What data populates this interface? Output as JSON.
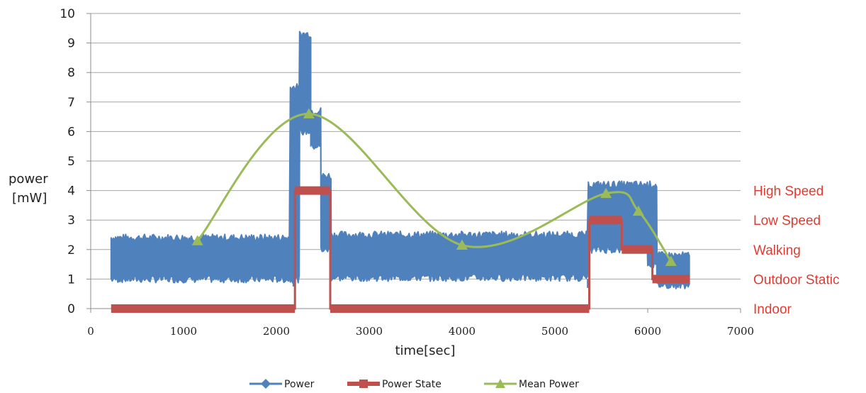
{
  "chart_data": {
    "type": "line",
    "title": "",
    "xlabel": "time[sec]",
    "ylabel": [
      "power",
      "[mW]"
    ],
    "xlim": [
      0,
      7000
    ],
    "ylim": [
      0,
      10
    ],
    "x_ticks": [
      "0",
      "1000",
      "2000",
      "3000",
      "4000",
      "5000",
      "6000",
      "7000"
    ],
    "y_ticks": [
      "0",
      "1",
      "2",
      "3",
      "4",
      "5",
      "6",
      "7",
      "8",
      "9",
      "10"
    ],
    "grid": "horizontal",
    "legend_position": "bottom",
    "state_labels": [
      {
        "text": "High Speed",
        "value": 4
      },
      {
        "text": "Low Speed",
        "value": 3
      },
      {
        "text": "Walking",
        "value": 2
      },
      {
        "text": "Outdoor Static",
        "value": 1
      },
      {
        "text": "Indoor",
        "value": 0
      }
    ],
    "series": [
      {
        "name": "Power",
        "color": "#4f81bd",
        "style": "band",
        "segments": [
          {
            "x": [
              220,
              2150
            ],
            "low": 1.0,
            "high": 2.4
          },
          {
            "x": [
              2150,
              2250
            ],
            "low": 1.0,
            "high": 7.5
          },
          {
            "x": [
              2250,
              2370
            ],
            "low": 6.0,
            "high": 9.3
          },
          {
            "x": [
              2370,
              2480
            ],
            "low": 5.5,
            "high": 6.7
          },
          {
            "x": [
              2480,
              2590
            ],
            "low": 2.0,
            "high": 4.5
          },
          {
            "x": [
              2590,
              5360
            ],
            "low": 1.05,
            "high": 2.5
          },
          {
            "x": [
              5360,
              6000
            ],
            "low": 2.0,
            "high": 4.2
          },
          {
            "x": [
              6000,
              6100
            ],
            "low": 1.5,
            "high": 4.2
          },
          {
            "x": [
              6100,
              6450
            ],
            "low": 0.8,
            "high": 1.8
          }
        ]
      },
      {
        "name": "Power State",
        "color": "#c0504d",
        "style": "step",
        "x": [
          220,
          2200,
          2200,
          2580,
          2580,
          5370,
          5370,
          5720,
          5720,
          6050,
          6050,
          6450
        ],
        "y": [
          0,
          0,
          4,
          4,
          0,
          0,
          3,
          3,
          2,
          2,
          1,
          1
        ]
      },
      {
        "name": "Mean Power",
        "color": "#9bbb59",
        "style": "smooth",
        "x": [
          1150,
          2350,
          4000,
          5550,
          5900,
          6250
        ],
        "y": [
          2.3,
          6.6,
          2.15,
          3.9,
          3.3,
          1.6
        ]
      }
    ]
  }
}
